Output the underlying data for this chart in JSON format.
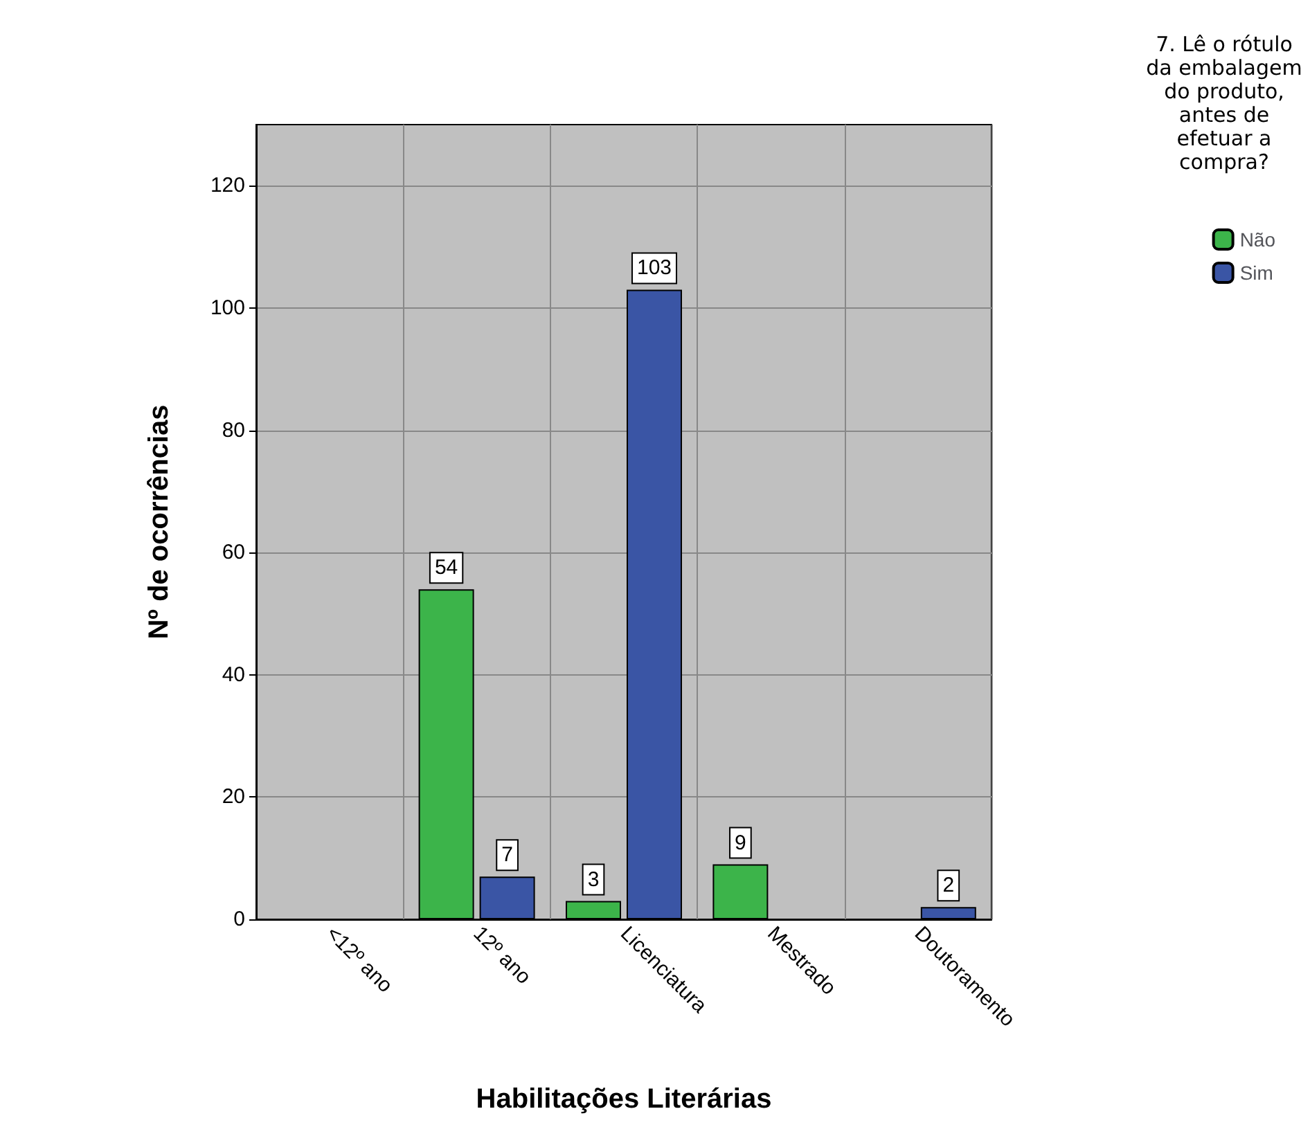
{
  "chart_data": {
    "type": "bar",
    "xlabel": "Habilitações Literárias",
    "ylabel": "Nº de ocorrências",
    "legend_title": "7. Lê o rótulo da embalagem do produto, antes de efetuar a compra?",
    "categories": [
      "<12º ano",
      "12º ano",
      "Licenciatura",
      "Mestrado",
      "Doutoramento"
    ],
    "series": [
      {
        "name": "Não",
        "color": "#3cb44a",
        "values": [
          null,
          54,
          3,
          9,
          null
        ]
      },
      {
        "name": "Sim",
        "color": "#3a55a5",
        "values": [
          null,
          7,
          103,
          null,
          2
        ]
      }
    ],
    "ylim": [
      0,
      130
    ],
    "yticks": [
      0,
      20,
      40,
      60,
      80,
      100,
      120
    ],
    "grid": true,
    "legend": "top right",
    "data_labels": true
  }
}
